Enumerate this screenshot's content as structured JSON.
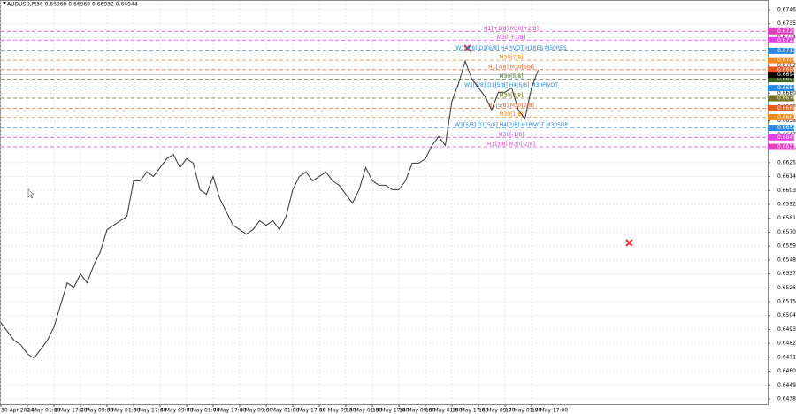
{
  "chart_data": {
    "type": "line",
    "title": "AUDUSD,M30  0.66960 0.66960 0.66932 0.66944",
    "categories": [
      "30 Apr 2024",
      null,
      null,
      null,
      "1 May 01:00",
      null,
      null,
      null,
      "1 May 17:00",
      null,
      null,
      null,
      "2 May 09:00",
      null,
      null,
      null,
      "3 May 01:00",
      null,
      null,
      null,
      "3 May 17:00",
      null,
      null,
      null,
      "6 May 09:00",
      null,
      null,
      null,
      "7 May 01:00",
      null,
      null,
      null,
      "7 May 17:00",
      null,
      null,
      null,
      "8 May 09:00",
      null,
      null,
      null,
      "9 May 01:00",
      null,
      null,
      null,
      "9 May 17:00",
      null,
      null,
      null,
      "10 May 09:00",
      null,
      null,
      null,
      "13 May 01:00",
      null,
      null,
      null,
      "13 May 17:00",
      null,
      null,
      null,
      "14 May 09:00",
      null,
      null,
      null,
      "15 May 01:00",
      null,
      null,
      null,
      "15 May 17:00",
      null,
      null,
      null,
      "16 May 09:00",
      null,
      null,
      null,
      "17 May 01:00",
      null,
      null,
      null,
      "17 May 17:00",
      null
    ],
    "series": [
      {
        "name": "AUDUSD",
        "color": "#333333",
        "values": [
          0.64983,
          0.64913,
          0.64843,
          0.64808,
          0.64738,
          0.64703,
          0.64773,
          0.64843,
          0.64948,
          0.65124,
          0.65299,
          0.65264,
          0.65369,
          0.65299,
          0.65439,
          0.65545,
          0.6572,
          0.65755,
          0.6579,
          0.65825,
          0.66106,
          0.66106,
          0.66176,
          0.66141,
          0.66211,
          0.66281,
          0.66316,
          0.66211,
          0.66281,
          0.66246,
          0.66036,
          0.66,
          0.66141,
          0.65965,
          0.6586,
          0.65755,
          0.6572,
          0.65685,
          0.6572,
          0.6579,
          0.65755,
          0.6579,
          0.6572,
          0.65825,
          0.66036,
          0.66141,
          0.66176,
          0.66106,
          0.66141,
          0.66176,
          0.66106,
          0.66071,
          0.66,
          0.6593,
          0.66036,
          0.66211,
          0.66106,
          0.66071,
          0.66071,
          0.66036,
          0.66036,
          0.66106,
          0.66246,
          0.66246,
          0.66281,
          0.66386,
          0.66456,
          0.66386,
          0.66737,
          0.66877,
          0.67053,
          0.66912,
          0.66842,
          0.66772,
          0.66667,
          0.66807,
          0.66807,
          0.66842,
          0.66667,
          0.66597,
          0.66842,
          0.66983
        ]
      }
    ],
    "ylim": [
      0.64338,
      0.6753
    ],
    "yticks": [
      {
        "value": 0.6438,
        "label": "0.64380"
      },
      {
        "value": 0.6449,
        "label": "0.64490"
      },
      {
        "value": 0.646,
        "label": "0.64600"
      },
      {
        "value": 0.6471,
        "label": "0.64710"
      },
      {
        "value": 0.6482,
        "label": "0.64820"
      },
      {
        "value": 0.6493,
        "label": "0.64930"
      },
      {
        "value": 0.6504,
        "label": "0.65040"
      },
      {
        "value": 0.6515,
        "label": "0.65150"
      },
      {
        "value": 0.6526,
        "label": "0.65260"
      },
      {
        "value": 0.6537,
        "label": "0.65370"
      },
      {
        "value": 0.6548,
        "label": "0.65480"
      },
      {
        "value": 0.6559,
        "label": "0.65590"
      },
      {
        "value": 0.657,
        "label": "0.65700"
      },
      {
        "value": 0.6581,
        "label": "0.65810"
      },
      {
        "value": 0.6592,
        "label": "0.65920"
      },
      {
        "value": 0.6603,
        "label": "0.66030"
      },
      {
        "value": 0.6614,
        "label": "0.66140"
      },
      {
        "value": 0.6625,
        "label": "0.66250"
      },
      {
        "value": 0.6636,
        "label": "0.66360"
      },
      {
        "value": 0.6647,
        "label": "0.66470"
      },
      {
        "value": 0.6658,
        "label": "0.66580"
      },
      {
        "value": 0.6669,
        "label": "0.66690"
      },
      {
        "value": 0.668,
        "label": "0.66800"
      },
      {
        "value": 0.6691,
        "label": "0.66910"
      },
      {
        "value": 0.6702,
        "label": "0.67020"
      },
      {
        "value": 0.6713,
        "label": "0.67130"
      },
      {
        "value": 0.6724,
        "label": "0.67240"
      },
      {
        "value": 0.6735,
        "label": "0.67350"
      },
      {
        "value": 0.6746,
        "label": "0.67460"
      }
    ],
    "grid": true,
    "levels": [
      {
        "label": "H1[+1/8] M30[+2/8]",
        "price": {
          "value": 0.6729,
          "label": "0.67290"
        },
        "color": "#e040c0"
      },
      {
        "label": "M30[+1/8]",
        "price": {
          "value": 0.6722,
          "label": "0.67220"
        },
        "color": "#e040e0"
      },
      {
        "label": "W1[6/8] D1[6/8] H4PIVOT H1RES M30RES",
        "price": {
          "value": 0.67135,
          "label": "0.67135"
        },
        "color": "#2a8ae0"
      },
      {
        "label": "M30[7/8]",
        "price": {
          "value": 0.6706,
          "label": "0.67060"
        },
        "color": "#f08a20"
      },
      {
        "label": "H1[7/8] M30[6/8]",
        "price": {
          "value": 0.66985,
          "label": "0.66985"
        },
        "color": "#e05a20"
      },
      {
        "label": "M30[5/8]",
        "price": {
          "value": 0.6691,
          "label": "0.66910"
        },
        "color": "#406a20"
      },
      {
        "label": "W1[5/8] D1[5/8] H4[6/8] M30PIVOT",
        "price": {
          "value": 0.6684,
          "label": "0.66840"
        },
        "color": "#2a8ae0"
      },
      {
        "label": "M30[3/8]",
        "price": {
          "value": 0.6676,
          "label": "0.66760"
        },
        "color": "#707020"
      },
      {
        "label": "H1[5/8] M30[2/8]",
        "price": {
          "value": 0.6668,
          "label": "0.66680"
        },
        "color": "#e06020"
      },
      {
        "label": "M30[1/8]",
        "price": {
          "value": 0.6661,
          "label": "0.66610"
        },
        "color": "#f08a20"
      },
      {
        "label": "W1[5/8] D1[5/8] H4[2/8] H1PIVOT M30SUP",
        "price": {
          "value": 0.66525,
          "label": "0.66525"
        },
        "color": "#2a8ae0"
      },
      {
        "label": "M30[-1/8]",
        "price": {
          "value": 0.6645,
          "label": "0.66450"
        },
        "color": "#e040e0"
      },
      {
        "label": "H1[3/8] M30[-2/8]",
        "price": {
          "value": 0.66375,
          "label": "0.66375"
        },
        "color": "#e040c0"
      }
    ],
    "current_price": {
      "value": 0.66944,
      "label": "0.66944"
    }
  }
}
